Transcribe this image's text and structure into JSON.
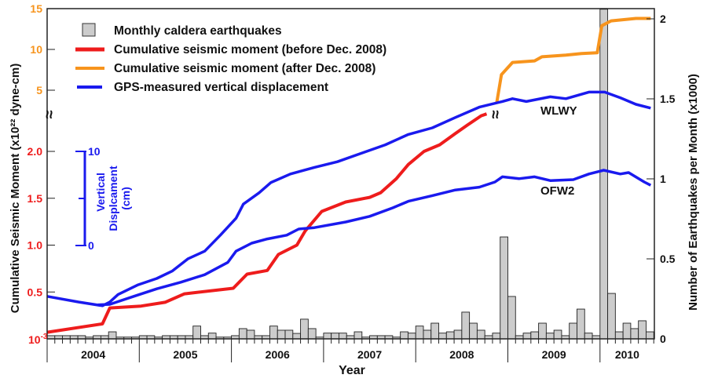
{
  "chart_data": {
    "type": "bar+line",
    "xlabel": "Year",
    "ylabel_left": "Cumulative Seismic Moment (x10²² dyne-cm)",
    "ylabel_right": "Number of Earthquakes per Month (x1000)",
    "x_tick_labels": [
      "2004",
      "2005",
      "2006",
      "2007",
      "2008",
      "2009",
      "2010"
    ],
    "xlim": [
      2004.0,
      2010.58
    ],
    "left_axis_lower": {
      "ticks": [
        "0.5",
        "1.0",
        "1.5",
        "2.0"
      ],
      "bottom_label": "10",
      "bottom_label_exp": "-3",
      "color": "#ee1c1c",
      "range": [
        0,
        2.0
      ]
    },
    "left_axis_upper": {
      "ticks": [
        "5",
        "10",
        "15"
      ],
      "color": "#f7941d",
      "range": [
        5,
        15
      ]
    },
    "axis_break_symbol": "≈",
    "right_axis": {
      "ticks": [
        "0",
        "0.5",
        "1",
        "1.5",
        "2"
      ],
      "range": [
        0,
        2
      ]
    },
    "displacement_scale": {
      "label_line1": "Vertical",
      "label_line2": "Displcament",
      "label_line3": "(cm)",
      "top_label": "10",
      "bottom_label": "0",
      "range_cm": [
        0,
        10
      ],
      "color": "#1a1aee"
    },
    "legend": {
      "placement": "top-left",
      "entries": [
        {
          "label": "Monthly caldera earthquakes",
          "kind": "bar",
          "color": "#cccccc"
        },
        {
          "label": "Cumulative seismic moment (before Dec. 2008)",
          "kind": "line",
          "color": "#ee1c1c"
        },
        {
          "label": "Cumulative seismic moment (after Dec. 2008)",
          "kind": "line",
          "color": "#f7941d"
        },
        {
          "label": "GPS-measured vertical displacement",
          "kind": "line",
          "color": "#1a1aee"
        }
      ]
    },
    "bars": {
      "name": "Monthly caldera earthquakes",
      "start": "2004-01",
      "unit": "x1000 per month",
      "values": [
        0.02,
        0.02,
        0.02,
        0.02,
        0.02,
        0.011,
        0.02,
        0.02,
        0.044,
        0.011,
        0.011,
        0.011,
        0.02,
        0.02,
        0.011,
        0.02,
        0.02,
        0.02,
        0.02,
        0.08,
        0.02,
        0.036,
        0.011,
        0.011,
        0.02,
        0.064,
        0.054,
        0.02,
        0.02,
        0.08,
        0.054,
        0.054,
        0.034,
        0.123,
        0.064,
        0.011,
        0.036,
        0.036,
        0.036,
        0.02,
        0.044,
        0.011,
        0.02,
        0.02,
        0.02,
        0.011,
        0.044,
        0.036,
        0.08,
        0.054,
        0.098,
        0.036,
        0.044,
        0.054,
        0.167,
        0.098,
        0.054,
        0.02,
        0.036,
        0.637,
        0.265,
        0.02,
        0.036,
        0.044,
        0.098,
        0.036,
        0.054,
        0.02,
        0.098,
        0.186,
        0.036,
        0.02,
        2.06,
        0.284,
        0.044,
        0.098,
        0.064,
        0.113,
        0.044
      ]
    },
    "series": [
      {
        "name": "Cumulative seismic moment (before Dec. 2008)",
        "axis": "left_lower",
        "color": "#ee1c1c",
        "points": [
          [
            2004.0,
            0.07
          ],
          [
            2004.6,
            0.16
          ],
          [
            2004.68,
            0.33
          ],
          [
            2005.02,
            0.35
          ],
          [
            2005.28,
            0.39
          ],
          [
            2005.49,
            0.48
          ],
          [
            2006.02,
            0.54
          ],
          [
            2006.17,
            0.69
          ],
          [
            2006.39,
            0.73
          ],
          [
            2006.51,
            0.9
          ],
          [
            2006.71,
            1.0
          ],
          [
            2006.8,
            1.15
          ],
          [
            2006.98,
            1.36
          ],
          [
            2007.24,
            1.46
          ],
          [
            2007.5,
            1.51
          ],
          [
            2007.62,
            1.56
          ],
          [
            2007.79,
            1.71
          ],
          [
            2007.92,
            1.86
          ],
          [
            2008.09,
            2.0
          ],
          [
            2008.26,
            2.07
          ],
          [
            2008.43,
            2.19
          ],
          [
            2008.56,
            2.28
          ],
          [
            2008.71,
            2.38
          ],
          [
            2008.77,
            2.4
          ]
        ]
      },
      {
        "name": "Cumulative seismic moment (after Dec. 2008)",
        "axis": "left_upper",
        "color": "#f7941d",
        "points": [
          [
            2008.88,
            3.5
          ],
          [
            2008.93,
            6.9
          ],
          [
            2009.05,
            8.4
          ],
          [
            2009.29,
            8.6
          ],
          [
            2009.37,
            9.1
          ],
          [
            2009.63,
            9.3
          ],
          [
            2009.8,
            9.5
          ],
          [
            2009.97,
            9.6
          ],
          [
            2010.02,
            12.9
          ],
          [
            2010.12,
            13.5
          ],
          [
            2010.39,
            13.8
          ],
          [
            2010.55,
            13.8
          ]
        ]
      },
      {
        "name": "WLWY",
        "axis": "displacement_cm",
        "color": "#1a1aee",
        "points": [
          [
            2004.0,
            -5.4
          ],
          [
            2004.34,
            -6.0
          ],
          [
            2004.6,
            -6.4
          ],
          [
            2004.68,
            -6.0
          ],
          [
            2004.77,
            -5.2
          ],
          [
            2004.98,
            -4.2
          ],
          [
            2005.19,
            -3.5
          ],
          [
            2005.36,
            -2.7
          ],
          [
            2005.53,
            -1.4
          ],
          [
            2005.71,
            -0.6
          ],
          [
            2005.88,
            1.1
          ],
          [
            2006.05,
            2.9
          ],
          [
            2006.13,
            4.4
          ],
          [
            2006.3,
            5.6
          ],
          [
            2006.43,
            6.7
          ],
          [
            2006.64,
            7.6
          ],
          [
            2006.9,
            8.3
          ],
          [
            2007.15,
            8.9
          ],
          [
            2007.41,
            9.8
          ],
          [
            2007.67,
            10.7
          ],
          [
            2007.92,
            11.8
          ],
          [
            2008.18,
            12.5
          ],
          [
            2008.43,
            13.6
          ],
          [
            2008.69,
            14.7
          ],
          [
            2008.94,
            15.3
          ],
          [
            2009.05,
            15.6
          ],
          [
            2009.2,
            15.3
          ],
          [
            2009.46,
            15.8
          ],
          [
            2009.63,
            15.6
          ],
          [
            2009.88,
            16.3
          ],
          [
            2010.05,
            16.3
          ],
          [
            2010.22,
            15.7
          ],
          [
            2010.39,
            15.0
          ],
          [
            2010.55,
            14.6
          ]
        ]
      },
      {
        "name": "OFW2",
        "axis": "displacement_cm",
        "color": "#1a1aee",
        "points": [
          [
            2004.55,
            -6.3
          ],
          [
            2004.68,
            -6.25
          ],
          [
            2004.94,
            -5.4
          ],
          [
            2005.19,
            -4.6
          ],
          [
            2005.45,
            -3.9
          ],
          [
            2005.71,
            -3.1
          ],
          [
            2005.96,
            -1.8
          ],
          [
            2006.05,
            -0.6
          ],
          [
            2006.22,
            0.25
          ],
          [
            2006.39,
            0.7
          ],
          [
            2006.6,
            1.1
          ],
          [
            2006.73,
            1.75
          ],
          [
            2006.9,
            1.9
          ],
          [
            2007.24,
            2.5
          ],
          [
            2007.5,
            3.1
          ],
          [
            2007.75,
            4.0
          ],
          [
            2007.92,
            4.7
          ],
          [
            2008.18,
            5.3
          ],
          [
            2008.43,
            5.9
          ],
          [
            2008.69,
            6.2
          ],
          [
            2008.86,
            6.75
          ],
          [
            2008.94,
            7.3
          ],
          [
            2009.12,
            7.1
          ],
          [
            2009.29,
            7.3
          ],
          [
            2009.46,
            6.9
          ],
          [
            2009.71,
            7.0
          ],
          [
            2009.88,
            7.6
          ],
          [
            2010.04,
            8.0
          ],
          [
            2010.22,
            7.6
          ],
          [
            2010.31,
            7.75
          ],
          [
            2010.48,
            6.75
          ],
          [
            2010.55,
            6.4
          ]
        ]
      }
    ],
    "annotations": [
      "WLWY",
      "OFW2"
    ],
    "grid": false
  }
}
